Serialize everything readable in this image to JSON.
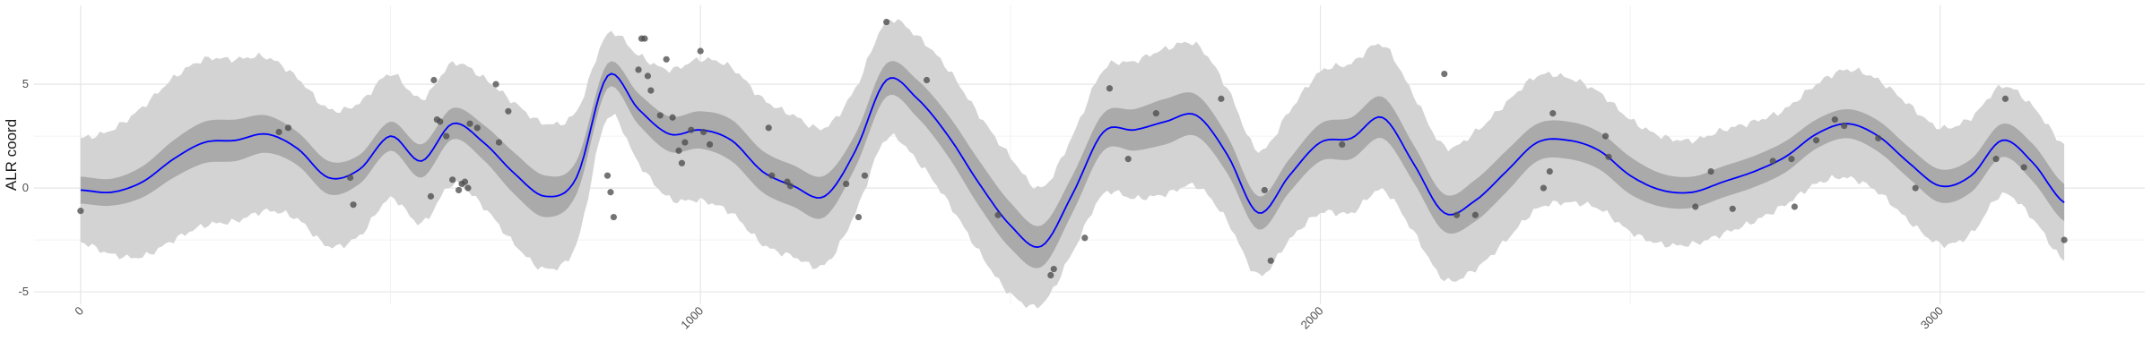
{
  "chart_data": {
    "type": "line",
    "xlabel": "",
    "ylabel": "ALR coord",
    "xlim": [
      -75,
      3330
    ],
    "ylim": [
      -5.6,
      8.8
    ],
    "x_ticks": [
      0,
      1000,
      2000,
      3000
    ],
    "x_tick_labels": [
      "0",
      "1000",
      "2000",
      "3000"
    ],
    "y_ticks": [
      -5,
      0,
      5
    ],
    "y_tick_labels": [
      "-5",
      "0",
      "5"
    ],
    "grid": true,
    "legend": "none",
    "colors": {
      "line": "#0000ff",
      "outer_band": "#d3d3d3",
      "inner_band": "#aaaaaa",
      "points": "#4d4d4d",
      "grid_major": "#e6e6e6",
      "grid_minor": "#f2f2f2"
    },
    "series": [
      {
        "type": "line",
        "x": [
          0,
          50,
          100,
          150,
          200,
          250,
          300,
          350,
          400,
          450,
          500,
          550,
          600,
          650,
          700,
          750,
          800,
          850,
          900,
          950,
          1000,
          1050,
          1100,
          1150,
          1200,
          1250,
          1300,
          1350,
          1400,
          1450,
          1500,
          1550,
          1600,
          1650,
          1700,
          1750,
          1800,
          1850,
          1900,
          1950,
          2000,
          2050,
          2100,
          2150,
          2200,
          2250,
          2300,
          2350,
          2400,
          2450,
          2500,
          2550,
          2600,
          2650,
          2700,
          2750,
          2800,
          2850,
          2900,
          2950,
          3000,
          3050,
          3100,
          3150,
          3200
        ],
        "y": [
          -0.1,
          -0.2,
          0.3,
          1.4,
          2.2,
          2.3,
          2.6,
          1.9,
          0.5,
          0.9,
          2.5,
          1.3,
          3.1,
          2.2,
          0.7,
          -0.4,
          0.5,
          5.4,
          3.8,
          2.6,
          2.8,
          2.3,
          0.8,
          0.1,
          -0.4,
          1.8,
          5.2,
          4.3,
          2.5,
          0.2,
          -1.8,
          -2.8,
          -0.3,
          2.7,
          2.8,
          3.2,
          3.5,
          1.6,
          -1.2,
          0.6,
          2.2,
          2.4,
          3.4,
          1.2,
          -1.2,
          -0.6,
          0.8,
          2.2,
          2.3,
          1.8,
          0.6,
          -0.1,
          -0.2,
          0.3,
          0.8,
          1.5,
          2.6,
          3.1,
          2.5,
          1.2,
          0.1,
          0.6,
          2.3,
          1.2,
          -0.7
        ]
      },
      {
        "type": "inner_band",
        "half_width": [
          0.65,
          0.65,
          0.75,
          0.9,
          1.0,
          1.0,
          0.9,
          0.8,
          0.8,
          0.7,
          0.7,
          0.8,
          0.75,
          0.85,
          1.0,
          1.0,
          0.8,
          0.6,
          0.75,
          0.85,
          0.9,
          1.0,
          1.0,
          1.0,
          1.0,
          0.8,
          0.8,
          0.9,
          1.0,
          1.1,
          1.1,
          1.0,
          0.9,
          0.9,
          1.0,
          1.1,
          1.0,
          0.9,
          0.8,
          0.8,
          0.9,
          1.0,
          1.0,
          0.9,
          0.9,
          1.0,
          1.0,
          0.9,
          0.9,
          0.9,
          0.9,
          0.8,
          0.75,
          0.75,
          0.75,
          0.75,
          0.7,
          0.7,
          0.75,
          0.75,
          0.8,
          0.8,
          0.8,
          0.9,
          0.9
        ]
      },
      {
        "type": "outer_band",
        "half_width": [
          2.5,
          3.0,
          3.6,
          3.9,
          4.0,
          3.9,
          3.7,
          3.4,
          3.3,
          3.2,
          3.0,
          3.0,
          2.9,
          3.1,
          3.4,
          3.5,
          3.2,
          2.0,
          2.6,
          3.1,
          3.4,
          3.5,
          3.5,
          3.4,
          3.3,
          3.0,
          2.8,
          3.0,
          3.2,
          3.3,
          3.3,
          2.8,
          2.8,
          3.0,
          3.3,
          3.5,
          3.4,
          3.2,
          3.0,
          3.1,
          3.4,
          3.6,
          3.5,
          3.3,
          3.2,
          3.3,
          3.3,
          3.2,
          3.0,
          2.8,
          2.7,
          2.6,
          2.5,
          2.5,
          2.4,
          2.3,
          2.4,
          2.6,
          2.7,
          2.8,
          2.8,
          2.8,
          2.6,
          2.7,
          2.8
        ]
      },
      {
        "type": "scatter",
        "points": [
          [
            0,
            -1.1
          ],
          [
            320,
            2.7
          ],
          [
            335,
            2.9
          ],
          [
            435,
            0.5
          ],
          [
            440,
            -0.8
          ],
          [
            565,
            -0.4
          ],
          [
            570,
            5.2
          ],
          [
            575,
            3.3
          ],
          [
            580,
            3.2
          ],
          [
            590,
            2.5
          ],
          [
            600,
            0.4
          ],
          [
            610,
            -0.1
          ],
          [
            615,
            0.2
          ],
          [
            620,
            0.3
          ],
          [
            625,
            0.0
          ],
          [
            628,
            3.1
          ],
          [
            640,
            2.9
          ],
          [
            670,
            5.0
          ],
          [
            675,
            2.2
          ],
          [
            690,
            3.7
          ],
          [
            850,
            0.6
          ],
          [
            855,
            -0.2
          ],
          [
            860,
            -1.4
          ],
          [
            900,
            5.7
          ],
          [
            905,
            7.2
          ],
          [
            910,
            7.2
          ],
          [
            915,
            5.4
          ],
          [
            920,
            4.7
          ],
          [
            935,
            3.5
          ],
          [
            945,
            6.2
          ],
          [
            955,
            3.4
          ],
          [
            965,
            1.8
          ],
          [
            970,
            1.2
          ],
          [
            975,
            2.2
          ],
          [
            985,
            2.8
          ],
          [
            1000,
            6.6
          ],
          [
            1005,
            2.7
          ],
          [
            1015,
            2.1
          ],
          [
            1110,
            2.9
          ],
          [
            1115,
            0.6
          ],
          [
            1140,
            0.3
          ],
          [
            1145,
            0.1
          ],
          [
            1235,
            0.2
          ],
          [
            1255,
            -1.4
          ],
          [
            1265,
            0.6
          ],
          [
            1300,
            8.0
          ],
          [
            1365,
            5.2
          ],
          [
            1480,
            -1.3
          ],
          [
            1565,
            -4.2
          ],
          [
            1570,
            -3.9
          ],
          [
            1620,
            -2.4
          ],
          [
            1660,
            4.8
          ],
          [
            1690,
            1.4
          ],
          [
            1735,
            3.6
          ],
          [
            1840,
            4.3
          ],
          [
            1910,
            -0.1
          ],
          [
            1920,
            -3.5
          ],
          [
            2035,
            2.1
          ],
          [
            2200,
            5.5
          ],
          [
            2220,
            -1.3
          ],
          [
            2250,
            -1.3
          ],
          [
            2360,
            0.0
          ],
          [
            2370,
            0.8
          ],
          [
            2375,
            3.6
          ],
          [
            2460,
            2.5
          ],
          [
            2465,
            1.5
          ],
          [
            2605,
            -0.9
          ],
          [
            2630,
            0.8
          ],
          [
            2665,
            -1.0
          ],
          [
            2730,
            1.3
          ],
          [
            2760,
            1.4
          ],
          [
            2765,
            -0.9
          ],
          [
            2800,
            2.3
          ],
          [
            2830,
            3.3
          ],
          [
            2845,
            3.0
          ],
          [
            2900,
            2.4
          ],
          [
            2960,
            0.0
          ],
          [
            3090,
            1.4
          ],
          [
            3105,
            4.3
          ],
          [
            3135,
            1.0
          ],
          [
            3200,
            -2.5
          ]
        ]
      }
    ]
  }
}
